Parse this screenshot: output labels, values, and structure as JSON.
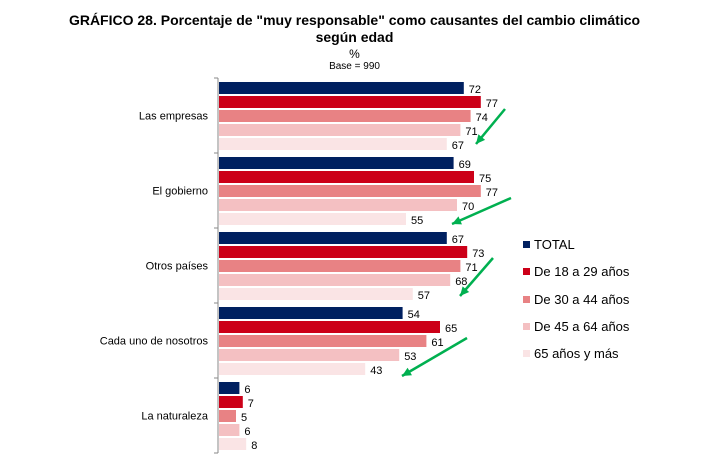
{
  "chart_data": {
    "type": "bar",
    "orientation": "horizontal",
    "title": "GRÁFICO 28. Porcentaje de \"muy responsable\" como causantes del cambio climático según edad",
    "title_line1": "GRÁFICO 28. Porcentaje de \"muy responsable\" como causantes del cambio climático",
    "title_line2": "según edad",
    "unit": "%",
    "base": "Base = 990",
    "categories": [
      "Las empresas",
      "El gobierno",
      "Otros países",
      "Cada uno de nosotros",
      "La naturaleza"
    ],
    "series": [
      {
        "name": "TOTAL",
        "color": "#002060",
        "values": [
          72,
          69,
          67,
          54,
          6
        ]
      },
      {
        "name": "De 18 a 29 años",
        "color": "#cc0018",
        "values": [
          77,
          75,
          73,
          65,
          7
        ]
      },
      {
        "name": "De 30 a 44 años",
        "color": "#e88284",
        "values": [
          74,
          77,
          71,
          61,
          5
        ]
      },
      {
        "name": "De 45 a 64 años",
        "color": "#f4c0c2",
        "values": [
          71,
          70,
          68,
          53,
          6
        ]
      },
      {
        "name": "65 años y más",
        "color": "#fae4e5",
        "values": [
          67,
          55,
          57,
          43,
          8
        ]
      }
    ],
    "data_labels": true,
    "legend_position": "right",
    "annotations": "green arrows pointing down toward the 65 años y más bar in the first four groups",
    "arrow_color": "#00b050",
    "xlim": [
      0,
      100
    ]
  }
}
